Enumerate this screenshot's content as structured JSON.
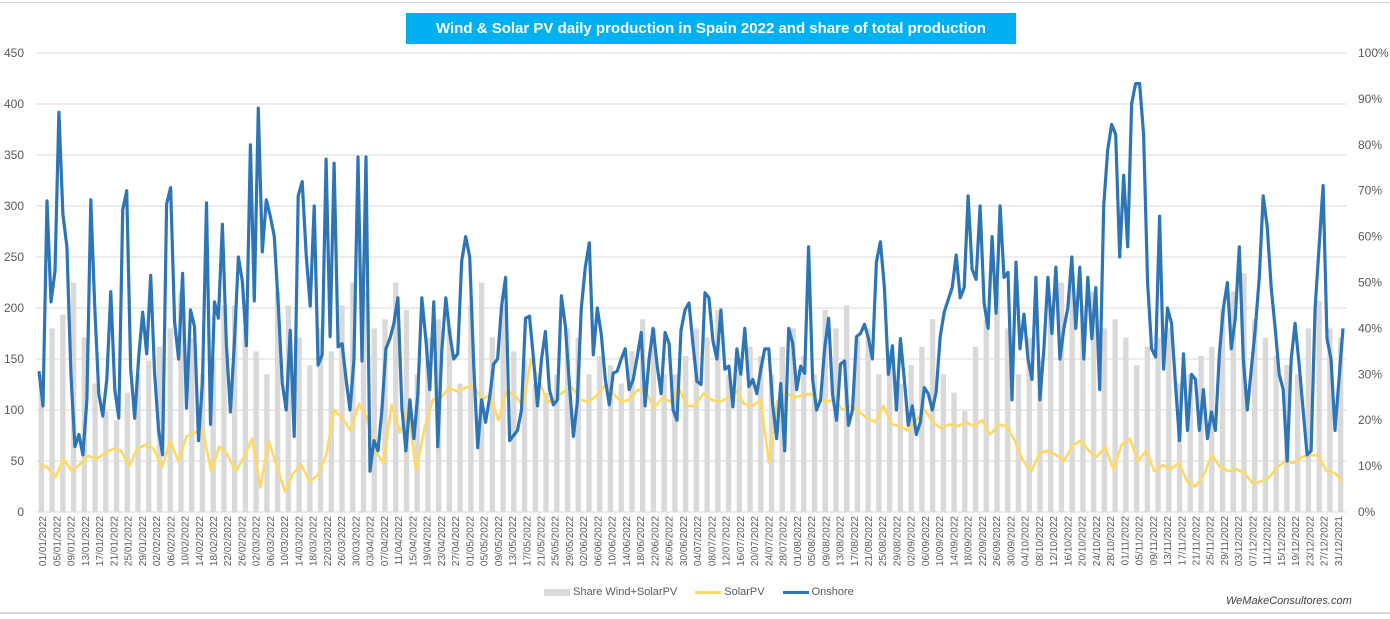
{
  "chart_data": {
    "type": "line",
    "title": "Wind & Solar PV daily production in Spain 2022 and share of total production",
    "xlabel": "",
    "ylabel": "",
    "y_left": {
      "min": 0,
      "max": 450,
      "step": 50,
      "ticks": [
        "0",
        "50",
        "100",
        "150",
        "200",
        "250",
        "300",
        "350",
        "400",
        "450"
      ]
    },
    "y_right": {
      "min": 0,
      "max": 100,
      "step": 10,
      "ticks": [
        "0%",
        "10%",
        "20%",
        "30%",
        "40%",
        "50%",
        "60%",
        "70%",
        "80%",
        "90%",
        "100%"
      ]
    },
    "grid": true,
    "legend_position": "bottom",
    "x_tick_labels": [
      "01/01/2022",
      "05/01/2022",
      "09/01/2022",
      "13/01/2022",
      "17/01/2022",
      "21/01/2022",
      "25/01/2022",
      "29/01/2022",
      "02/02/2022",
      "06/02/2022",
      "10/02/2022",
      "14/02/2022",
      "18/02/2022",
      "22/02/2022",
      "26/02/2022",
      "02/03/2022",
      "06/03/2022",
      "10/03/2022",
      "14/03/2022",
      "18/03/2022",
      "22/03/2022",
      "26/03/2022",
      "30/03/2022",
      "03/04/2022",
      "07/04/2022",
      "11/04/2022",
      "15/04/2022",
      "19/04/2022",
      "23/04/2022",
      "27/04/2022",
      "01/05/2022",
      "05/05/2022",
      "09/05/2022",
      "13/05/2022",
      "17/05/2022",
      "21/05/2022",
      "25/05/2022",
      "29/05/2022",
      "02/06/2022",
      "06/06/2022",
      "10/06/2022",
      "14/06/2022",
      "18/06/2022",
      "22/06/2022",
      "26/06/2022",
      "30/06/2022",
      "04/07/2022",
      "08/07/2022",
      "12/07/2022",
      "16/07/2022",
      "20/07/2022",
      "24/07/2022",
      "28/07/2022",
      "01/08/2022",
      "05/08/2022",
      "09/08/2022",
      "13/08/2022",
      "17/08/2022",
      "21/08/2022",
      "25/08/2022",
      "29/08/2022",
      "02/09/2022",
      "06/09/2022",
      "10/09/2022",
      "14/09/2022",
      "18/09/2022",
      "22/09/2022",
      "26/09/2022",
      "30/09/2022",
      "04/10/2022",
      "08/10/2022",
      "12/10/2022",
      "16/10/2022",
      "20/10/2022",
      "24/10/2022",
      "28/10/2022",
      "01/11/2022",
      "05/11/2022",
      "09/11/2022",
      "13/11/2022",
      "17/11/2022",
      "21/11/2022",
      "25/11/2022",
      "29/11/2022",
      "03/12/2022",
      "07/12/2022",
      "11/12/2022",
      "15/12/2022",
      "19/12/2022",
      "23/12/2022",
      "27/12/2022",
      "31/12/2021"
    ],
    "sample_interval_days": 3,
    "series": [
      {
        "name": "Share Wind+SolarPV",
        "type": "bar",
        "axis": "right",
        "unit": "%",
        "color": "#d9d9d9",
        "values": [
          30,
          40,
          43,
          50,
          38,
          28,
          22,
          20,
          26,
          30,
          33,
          36,
          40,
          48,
          38,
          30,
          33,
          45,
          45,
          40,
          35,
          30,
          48,
          45,
          38,
          32,
          40,
          35,
          45,
          50,
          48,
          40,
          42,
          50,
          44,
          30,
          38,
          42,
          40,
          28,
          45,
          50,
          38,
          45,
          35,
          33,
          28,
          26,
          30,
          40,
          38,
          30,
          34,
          32,
          28,
          35,
          42,
          40,
          30,
          30,
          34,
          40,
          38,
          44,
          30,
          32,
          36,
          34,
          30,
          36,
          40,
          34,
          30,
          44,
          40,
          45,
          38,
          40,
          30,
          35,
          28,
          32,
          36,
          42,
          30,
          26,
          22,
          36,
          42,
          48,
          40,
          30,
          38,
          33,
          45,
          50,
          52,
          45,
          48,
          40,
          42,
          38,
          32,
          36,
          38,
          40,
          28,
          30,
          34,
          36,
          44,
          48,
          52,
          42,
          38,
          34,
          32,
          30,
          40,
          46,
          40,
          38
        ]
      },
      {
        "name": "SolarPV",
        "type": "line",
        "axis": "left",
        "unit": "GWh",
        "color": "#ffd966",
        "values": [
          46,
          44,
          34,
          52,
          40,
          47,
          55,
          52,
          57,
          62,
          60,
          45,
          62,
          66,
          62,
          44,
          70,
          50,
          74,
          78,
          80,
          40,
          64,
          56,
          40,
          54,
          72,
          24,
          70,
          45,
          20,
          38,
          46,
          30,
          36,
          55,
          100,
          92,
          80,
          106,
          92,
          60,
          48,
          105,
          78,
          100,
          40,
          82,
          110,
          112,
          122,
          118,
          122,
          124,
          110,
          115,
          90,
          118,
          115,
          104,
          150,
          128,
          108,
          112,
          118,
          122,
          110,
          108,
          114,
          124,
          116,
          108,
          110,
          120,
          118,
          102,
          112,
          108,
          122,
          104,
          104,
          116,
          110,
          108,
          112,
          118,
          106,
          104,
          110,
          48,
          108,
          118,
          112,
          114,
          116,
          110,
          108,
          110,
          100,
          104,
          98,
          92,
          88,
          104,
          86,
          84,
          80,
          90,
          100,
          88,
          82,
          86,
          84,
          88,
          84,
          90,
          76,
          86,
          84,
          70,
          50,
          40,
          58,
          60,
          56,
          50,
          65,
          70,
          60,
          54,
          64,
          42,
          66,
          72,
          50,
          60,
          40,
          46,
          42,
          48,
          30,
          25,
          36,
          56,
          44,
          40,
          42,
          38,
          28,
          30,
          34,
          44,
          50,
          48,
          54,
          56,
          55,
          40,
          38,
          30
        ]
      },
      {
        "name": "Onshore",
        "type": "line",
        "axis": "left",
        "unit": "GWh",
        "color": "#2e75b6",
        "values": [
          138,
          104,
          305,
          206,
          236,
          392,
          292,
          260,
          136,
          64,
          76,
          56,
          110,
          306,
          200,
          116,
          94,
          130,
          216,
          120,
          92,
          296,
          315,
          140,
          92,
          152,
          196,
          155,
          232,
          136,
          80,
          56,
          302,
          318,
          186,
          150,
          234,
          102,
          198,
          182,
          70,
          128,
          303,
          86,
          206,
          190,
          282,
          164,
          98,
          166,
          250,
          226,
          163,
          360,
          207,
          396,
          255,
          306,
          290,
          270,
          202,
          126,
          100,
          178,
          74,
          310,
          324,
          252,
          202,
          300,
          144,
          154,
          346,
          172,
          342,
          162,
          165,
          130,
          100,
          150,
          348,
          148,
          348,
          40,
          70,
          60,
          100,
          160,
          170,
          185,
          210,
          102,
          60,
          110,
          72,
          115,
          210,
          170,
          120,
          206,
          64,
          158,
          210,
          175,
          150,
          155,
          246,
          270,
          250,
          145,
          63,
          110,
          88,
          112,
          145,
          150,
          202,
          230,
          70,
          75,
          80,
          100,
          190,
          192,
          150,
          104,
          150,
          177,
          120,
          105,
          110,
          212,
          182,
          125,
          74,
          108,
          200,
          240,
          264,
          154,
          200,
          174,
          130,
          105,
          136,
          138,
          150,
          160,
          120,
          130,
          152,
          176,
          104,
          150,
          180,
          144,
          116,
          176,
          165,
          100,
          90,
          178,
          198,
          205,
          164,
          128,
          125,
          215,
          210,
          168,
          150,
          198,
          140,
          143,
          103,
          160,
          135,
          180,
          123,
          130,
          116,
          140,
          160,
          160,
          105,
          72,
          126,
          60,
          180,
          165,
          120,
          143,
          136,
          260,
          130,
          100,
          110,
          160,
          190,
          115,
          90,
          145,
          148,
          85,
          100,
          172,
          175,
          184,
          170,
          150,
          245,
          265,
          220,
          135,
          163,
          100,
          170,
          130,
          85,
          104,
          76,
          88,
          122,
          116,
          100,
          118,
          172,
          196,
          208,
          220,
          252,
          210,
          220,
          310,
          238,
          228,
          300,
          205,
          180,
          270,
          195,
          300,
          230,
          235,
          110,
          245,
          160,
          194,
          150,
          130,
          230,
          110,
          160,
          230,
          175,
          240,
          150,
          180,
          200,
          250,
          180,
          240,
          150,
          230,
          170,
          220,
          120,
          300,
          355,
          380,
          370,
          250,
          330,
          260,
          400,
          420,
          420,
          370,
          225,
          160,
          152,
          290,
          140,
          200,
          185,
          125,
          70,
          155,
          80,
          135,
          130,
          80,
          120,
          72,
          98,
          80,
          155,
          200,
          225,
          160,
          190,
          260,
          150,
          100,
          140,
          180,
          230,
          310,
          280,
          220,
          180,
          135,
          120,
          50,
          150,
          185,
          145,
          100,
          56,
          60,
          200,
          260,
          320,
          170,
          150,
          80,
          130,
          180
        ]
      }
    ]
  },
  "legend": {
    "items": [
      {
        "label": "Share Wind+SolarPV",
        "color": "#d9d9d9"
      },
      {
        "label": "SolarPV",
        "color": "#ffd966"
      },
      {
        "label": "Onshore",
        "color": "#2e75b6"
      }
    ]
  },
  "credit": "WeMakeConsultores.com",
  "colors": {
    "title_bg": "#00b0f0",
    "grid": "#d9d9d9",
    "axis_text": "#595959"
  }
}
